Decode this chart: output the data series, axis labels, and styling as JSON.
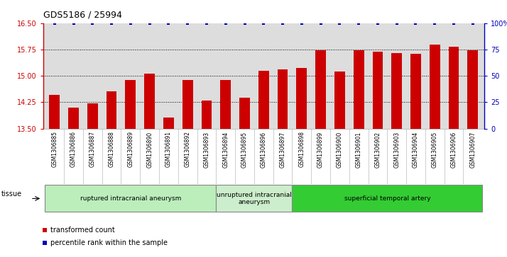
{
  "title": "GDS5186 / 25994",
  "samples": [
    "GSM1306885",
    "GSM1306886",
    "GSM1306887",
    "GSM1306888",
    "GSM1306889",
    "GSM1306890",
    "GSM1306891",
    "GSM1306892",
    "GSM1306893",
    "GSM1306894",
    "GSM1306895",
    "GSM1306896",
    "GSM1306897",
    "GSM1306898",
    "GSM1306899",
    "GSM1306900",
    "GSM1306901",
    "GSM1306902",
    "GSM1306903",
    "GSM1306904",
    "GSM1306905",
    "GSM1306906",
    "GSM1306907"
  ],
  "bar_values": [
    14.45,
    14.1,
    14.22,
    14.55,
    14.88,
    15.07,
    13.82,
    14.88,
    14.3,
    14.88,
    14.38,
    15.15,
    15.18,
    15.22,
    15.72,
    15.12,
    15.72,
    15.68,
    15.65,
    15.62,
    15.88,
    15.82,
    15.72
  ],
  "percentile_values": [
    100,
    100,
    100,
    100,
    100,
    100,
    100,
    100,
    100,
    100,
    100,
    100,
    100,
    100,
    100,
    100,
    100,
    100,
    100,
    100,
    100,
    100,
    100
  ],
  "bar_color": "#cc0000",
  "percentile_color": "#0000bb",
  "ylim_left": [
    13.5,
    16.5
  ],
  "ylim_right": [
    0,
    100
  ],
  "yticks_left": [
    13.5,
    14.25,
    15.0,
    15.75,
    16.5
  ],
  "yticks_right": [
    0,
    25,
    50,
    75,
    100
  ],
  "ytick_labels_right": [
    "0",
    "25",
    "50",
    "75",
    "100%"
  ],
  "grid_values": [
    14.25,
    15.0,
    15.75
  ],
  "groups": [
    {
      "label": "ruptured intracranial aneurysm",
      "start": 0,
      "end": 9,
      "color": "#bbeebb"
    },
    {
      "label": "unruptured intracranial\naneurysm",
      "start": 9,
      "end": 13,
      "color": "#cceecc"
    },
    {
      "label": "superficial temporal artery",
      "start": 13,
      "end": 23,
      "color": "#33cc33"
    }
  ],
  "tissue_label": "tissue",
  "legend_bar_label": "transformed count",
  "legend_dot_label": "percentile rank within the sample",
  "plot_bg_color": "#dddddd",
  "xtick_bg_color": "#cccccc"
}
